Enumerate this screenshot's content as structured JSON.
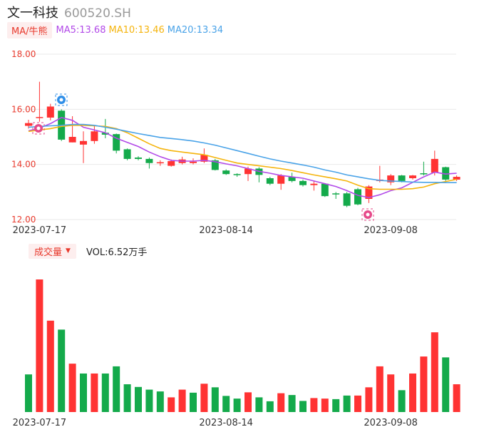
{
  "header": {
    "name": "文一科技",
    "code": "600520.SH"
  },
  "ma_bar": {
    "button": "MA/牛熊",
    "ma5": "MA5:13.68",
    "ma10": "MA10:13.46",
    "ma20": "MA20:13.34"
  },
  "volume_bar": {
    "button": "成交量",
    "value": "VOL:6.52万手"
  },
  "colors": {
    "up": "#ff3333",
    "down": "#14aa4b",
    "ma5": "#b24ae8",
    "ma10": "#f5b40c",
    "ma20": "#4aa3e8",
    "grid": "#e9e9e9",
    "axis_text": "#e8392c",
    "date_text": "#333333"
  },
  "chart_data": [
    {
      "type": "candlestick",
      "title": "",
      "y_ticks": [
        "18.00",
        "16.00",
        "14.00",
        "12.00"
      ],
      "ylim": [
        12.0,
        18.0
      ],
      "x_tick_labels": [
        "2023-07-17",
        "2023-08-14",
        "2023-09-08"
      ],
      "x_tick_indices": [
        1,
        18,
        33
      ],
      "marker_icons": [
        "bull-icon",
        "bull-icon",
        "bear-icon"
      ],
      "candles": [
        {
          "open": 15.4,
          "close": 15.5,
          "high": 15.62,
          "low": 15.3
        },
        {
          "open": 15.7,
          "close": 15.72,
          "high": 17.0,
          "low": 15.55
        },
        {
          "open": 15.7,
          "close": 16.1,
          "high": 16.2,
          "low": 15.6
        },
        {
          "open": 15.95,
          "close": 14.9,
          "high": 16.0,
          "low": 14.85
        },
        {
          "open": 14.8,
          "close": 15.0,
          "high": 15.75,
          "low": 14.8
        },
        {
          "open": 14.72,
          "close": 14.85,
          "high": 15.2,
          "low": 14.05
        },
        {
          "open": 14.85,
          "close": 15.2,
          "high": 15.4,
          "low": 14.75
        },
        {
          "open": 15.15,
          "close": 15.08,
          "high": 15.65,
          "low": 14.95
        },
        {
          "open": 15.1,
          "close": 14.5,
          "high": 15.12,
          "low": 14.4
        },
        {
          "open": 14.55,
          "close": 14.2,
          "high": 14.58,
          "low": 14.15
        },
        {
          "open": 14.25,
          "close": 14.2,
          "high": 14.3,
          "low": 14.15
        },
        {
          "open": 14.2,
          "close": 14.05,
          "high": 14.25,
          "low": 13.85
        },
        {
          "open": 14.05,
          "close": 14.08,
          "high": 14.15,
          "low": 13.95
        },
        {
          "open": 13.95,
          "close": 14.12,
          "high": 14.18,
          "low": 13.92
        },
        {
          "open": 14.05,
          "close": 14.18,
          "high": 14.28,
          "low": 14.0
        },
        {
          "open": 14.05,
          "close": 14.1,
          "high": 14.22,
          "low": 14.0
        },
        {
          "open": 14.1,
          "close": 14.35,
          "high": 14.58,
          "low": 14.05
        },
        {
          "open": 14.15,
          "close": 13.8,
          "high": 14.2,
          "low": 13.78
        },
        {
          "open": 13.78,
          "close": 13.65,
          "high": 13.82,
          "low": 13.62
        },
        {
          "open": 13.65,
          "close": 13.62,
          "high": 13.68,
          "low": 13.55
        },
        {
          "open": 13.65,
          "close": 13.85,
          "high": 13.92,
          "low": 13.4
        },
        {
          "open": 13.85,
          "close": 13.62,
          "high": 13.9,
          "low": 13.35
        },
        {
          "open": 13.5,
          "close": 13.3,
          "high": 13.55,
          "low": 13.25
        },
        {
          "open": 13.3,
          "close": 13.6,
          "high": 13.65,
          "low": 13.08
        },
        {
          "open": 13.55,
          "close": 13.4,
          "high": 13.7,
          "low": 13.35
        },
        {
          "open": 13.4,
          "close": 13.25,
          "high": 13.45,
          "low": 13.2
        },
        {
          "open": 13.25,
          "close": 13.3,
          "high": 13.4,
          "low": 13.05
        },
        {
          "open": 13.3,
          "close": 12.85,
          "high": 13.32,
          "low": 12.82
        },
        {
          "open": 12.95,
          "close": 12.92,
          "high": 13.0,
          "low": 12.75
        },
        {
          "open": 12.95,
          "close": 12.5,
          "high": 13.0,
          "low": 12.45
        },
        {
          "open": 13.1,
          "close": 12.55,
          "high": 13.15,
          "low": 12.52
        },
        {
          "open": 12.75,
          "close": 13.2,
          "high": 13.25,
          "low": 12.6
        },
        {
          "open": 13.4,
          "close": 13.45,
          "high": 13.95,
          "low": 13.35
        },
        {
          "open": 13.35,
          "close": 13.6,
          "high": 13.65,
          "low": 13.25
        },
        {
          "open": 13.6,
          "close": 13.4,
          "high": 13.62,
          "low": 13.35
        },
        {
          "open": 13.5,
          "close": 13.6,
          "high": 13.62,
          "low": 13.45
        },
        {
          "open": 13.68,
          "close": 13.65,
          "high": 14.1,
          "low": 13.6
        },
        {
          "open": 13.7,
          "close": 14.2,
          "high": 14.5,
          "low": 13.6
        },
        {
          "open": 13.9,
          "close": 13.45,
          "high": 13.92,
          "low": 13.4
        },
        {
          "open": 13.45,
          "close": 13.55,
          "high": 13.6,
          "low": 13.4
        }
      ],
      "series": [
        {
          "name": "MA5",
          "values": [
            15.22,
            15.32,
            15.48,
            15.7,
            15.6,
            15.35,
            15.25,
            15.15,
            14.95,
            14.8,
            14.65,
            14.45,
            14.28,
            14.15,
            14.12,
            14.12,
            14.15,
            14.1,
            14.02,
            13.95,
            13.85,
            13.75,
            13.68,
            13.6,
            13.55,
            13.5,
            13.4,
            13.3,
            13.2,
            13.05,
            12.88,
            12.8,
            12.9,
            13.05,
            13.15,
            13.35,
            13.55,
            13.72,
            13.65,
            13.68
          ]
        },
        {
          "name": "MA10",
          "values": [
            15.2,
            15.25,
            15.3,
            15.38,
            15.42,
            15.42,
            15.4,
            15.38,
            15.3,
            15.15,
            14.95,
            14.75,
            14.58,
            14.5,
            14.45,
            14.4,
            14.35,
            14.25,
            14.15,
            14.05,
            14.0,
            13.95,
            13.9,
            13.85,
            13.78,
            13.7,
            13.62,
            13.55,
            13.48,
            13.4,
            13.25,
            13.12,
            13.1,
            13.1,
            13.1,
            13.12,
            13.18,
            13.3,
            13.38,
            13.46
          ]
        },
        {
          "name": "MA20",
          "values": [
            15.35,
            15.38,
            15.4,
            15.42,
            15.45,
            15.45,
            15.42,
            15.35,
            15.28,
            15.2,
            15.12,
            15.05,
            14.98,
            14.94,
            14.9,
            14.85,
            14.78,
            14.7,
            14.6,
            14.5,
            14.4,
            14.3,
            14.2,
            14.12,
            14.05,
            13.98,
            13.9,
            13.8,
            13.72,
            13.62,
            13.55,
            13.48,
            13.42,
            13.4,
            13.38,
            13.36,
            13.35,
            13.35,
            13.34,
            13.34
          ]
        }
      ]
    },
    {
      "type": "bar",
      "title": "",
      "ylabel": "",
      "x_tick_labels": [
        "2023-07-17",
        "2023-08-14",
        "2023-09-08"
      ],
      "x_tick_indices": [
        1,
        18,
        33
      ],
      "values": [
        2.1,
        7.4,
        5.1,
        4.6,
        2.7,
        2.15,
        2.15,
        2.15,
        2.55,
        1.55,
        1.4,
        1.25,
        1.15,
        0.82,
        1.25,
        1.08,
        1.58,
        1.38,
        0.9,
        0.75,
        1.1,
        0.82,
        0.6,
        1.05,
        0.95,
        0.62,
        0.78,
        0.75,
        0.72,
        0.92,
        0.92,
        1.38,
        2.55,
        2.1,
        1.22,
        2.15,
        3.1,
        4.45,
        3.05,
        1.55
      ],
      "directions": [
        "down",
        "up",
        "up",
        "down",
        "up",
        "down",
        "up",
        "down",
        "down",
        "down",
        "down",
        "down",
        "down",
        "up",
        "up",
        "down",
        "up",
        "down",
        "down",
        "down",
        "up",
        "down",
        "down",
        "up",
        "down",
        "down",
        "up",
        "up",
        "down",
        "down",
        "up",
        "up",
        "up",
        "up",
        "down",
        "up",
        "up",
        "up",
        "down",
        "up"
      ]
    }
  ]
}
